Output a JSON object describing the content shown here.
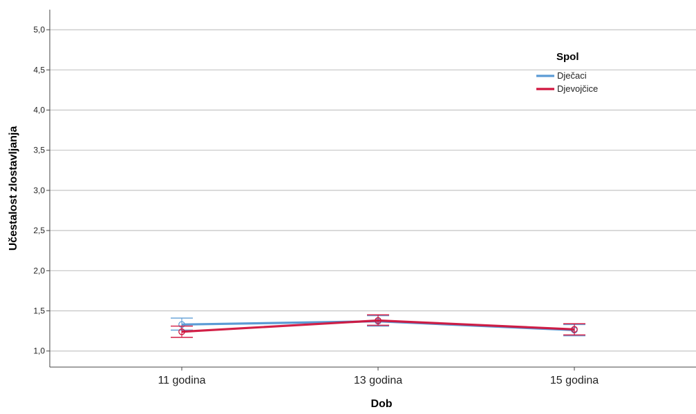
{
  "chart_data": {
    "type": "line",
    "title": "",
    "xlabel": "Dob",
    "ylabel": "Učestalost zlostavljanja",
    "categories": [
      "11 godina",
      "13 godina",
      "15 godina"
    ],
    "ylim": [
      0.8,
      5.25
    ],
    "yticks": [
      "1,0",
      "1,5",
      "2,0",
      "2,5",
      "3,0",
      "3,5",
      "4,0",
      "4,5",
      "5,0"
    ],
    "ytick_values": [
      1.0,
      1.5,
      2.0,
      2.5,
      3.0,
      3.5,
      4.0,
      4.5,
      5.0
    ],
    "grid": true,
    "legend": {
      "title": "Spol",
      "position": "top-right"
    },
    "series": [
      {
        "name": "Dječaci",
        "color": "#5b9bd5",
        "values": [
          1.33,
          1.37,
          1.26
        ],
        "error_low": [
          1.26,
          1.31,
          1.19
        ],
        "error_high": [
          1.41,
          1.44,
          1.33
        ]
      },
      {
        "name": "Djevojčice",
        "color": "#d0143d",
        "values": [
          1.24,
          1.38,
          1.27
        ],
        "error_low": [
          1.17,
          1.32,
          1.2
        ],
        "error_high": [
          1.31,
          1.45,
          1.34
        ]
      }
    ]
  }
}
